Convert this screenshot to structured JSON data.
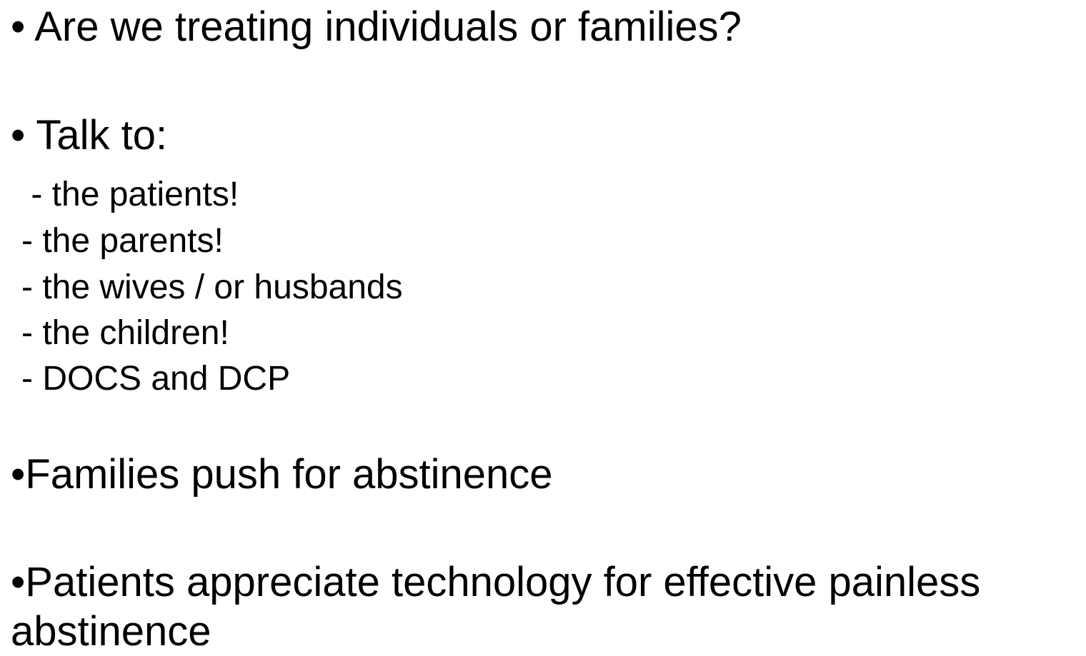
{
  "lines": [
    "• Are we treating individuals or families?",
    "• Talk to:",
    " - the patients!",
    "- the parents!",
    "- the wives / or husbands",
    "- the children!",
    "- DOCS and DCP",
    "•Families push for abstinence",
    "•Patients appreciate technology for effective painless abstinence"
  ]
}
